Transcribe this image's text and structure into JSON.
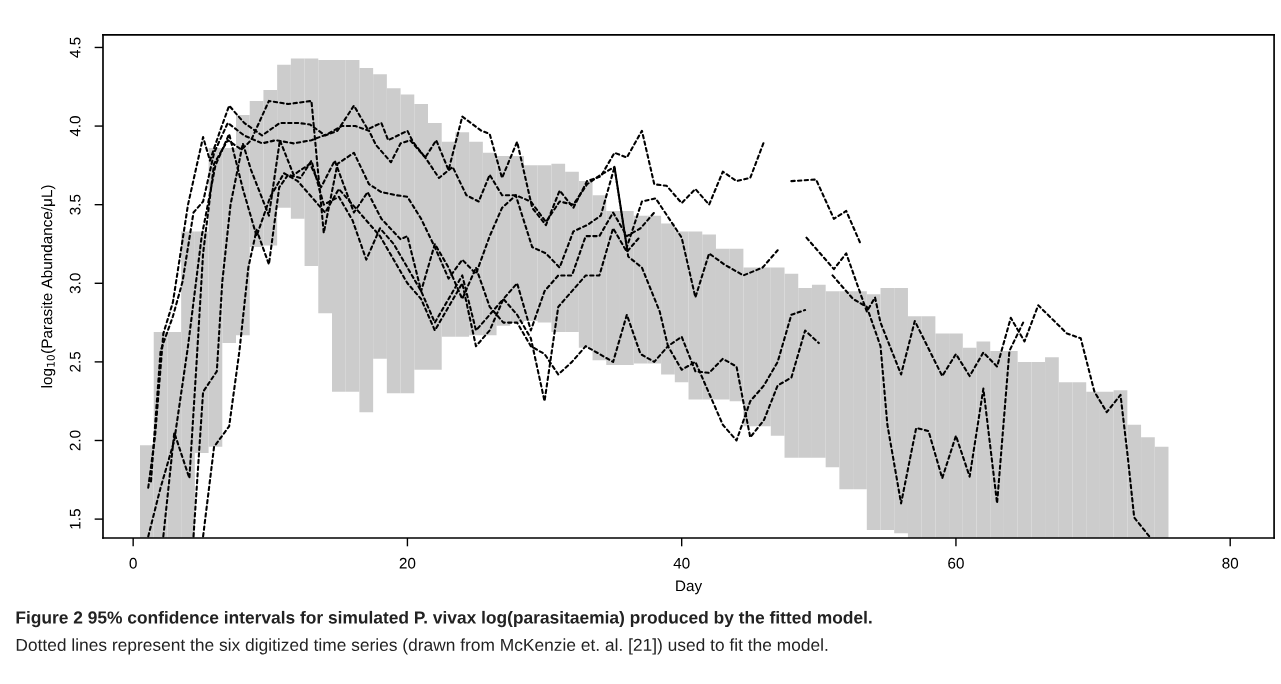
{
  "chart_data": {
    "type": "line",
    "xlabel": "Day",
    "ylabel": "log$_{10}$(Parasite Abundance/μL)",
    "xlim": [
      -2.2,
      83.2
    ],
    "ylim": [
      1.38,
      4.58
    ],
    "xticks": [
      0,
      20,
      40,
      60,
      80
    ],
    "yticks": [
      1.5,
      {
        "value": 2,
        "label": "2.0"
      },
      2.5,
      {
        "value": 3,
        "label": "3.0"
      },
      3.5,
      {
        "value": 4,
        "label": "4.0"
      },
      4.5
    ],
    "line_style": "dotted",
    "series": [
      {
        "type": "bar",
        "color": "#cccccc",
        "x": [
          1,
          2,
          3,
          4,
          5,
          6,
          7,
          8,
          9,
          10,
          11,
          12,
          13,
          14,
          15,
          16,
          17,
          18,
          19,
          20,
          21,
          22,
          23,
          24,
          25,
          26,
          27,
          28,
          29,
          30,
          31,
          32,
          33,
          34,
          35,
          36,
          37,
          38,
          39,
          40,
          41,
          42,
          43,
          44,
          45,
          46,
          47,
          48,
          49,
          50,
          51,
          52,
          53,
          54,
          55,
          56,
          57,
          58,
          59,
          60,
          61,
          62,
          63,
          64,
          65,
          66,
          67,
          68,
          69,
          70,
          71,
          72,
          73,
          74,
          75
        ],
        "base": [
          1.38,
          1.38,
          1.38,
          1.38,
          1.92,
          1.96,
          2.62,
          2.67,
          3.23,
          3.24,
          3.48,
          3.41,
          3.11,
          2.81,
          2.31,
          2.31,
          2.18,
          2.52,
          2.3,
          2.3,
          2.45,
          2.45,
          2.66,
          2.66,
          2.67,
          2.67,
          2.73,
          2.75,
          2.76,
          2.75,
          2.69,
          2.69,
          2.59,
          2.51,
          2.48,
          2.48,
          2.49,
          2.49,
          2.42,
          2.37,
          2.26,
          2.26,
          2.26,
          2.25,
          2.09,
          2.09,
          2.03,
          1.89,
          1.89,
          1.89,
          1.83,
          1.69,
          1.69,
          1.43,
          1.43,
          1.41,
          1.38,
          1.38,
          1.38,
          1.38,
          1.38,
          1.38,
          1.38,
          1.38,
          1.38,
          1.38,
          1.38,
          1.38,
          1.38,
          1.38,
          1.38,
          1.38,
          1.38,
          1.38,
          1.38
        ],
        "values": [
          0.59,
          1.31,
          1.31,
          1.95,
          1.41,
          1.9,
          1.24,
          1.4,
          0.93,
          0.99,
          0.91,
          1.02,
          1.32,
          1.61,
          2.11,
          2.11,
          2.19,
          1.81,
          1.94,
          1.9,
          1.69,
          1.57,
          1.24,
          1.3,
          1.23,
          1.16,
          1.08,
          1.06,
          0.99,
          1.0,
          1.07,
          1.02,
          1.06,
          1.05,
          0.98,
          0.98,
          0.94,
          0.94,
          0.96,
          0.96,
          1.07,
          1.05,
          0.96,
          0.97,
          1.01,
          1.01,
          1.07,
          1.17,
          1.08,
          1.1,
          1.12,
          1.26,
          1.26,
          1.5,
          1.54,
          1.56,
          1.41,
          1.41,
          1.3,
          1.3,
          1.21,
          1.25,
          1.19,
          1.19,
          1.12,
          1.12,
          1.15,
          0.99,
          0.99,
          0.93,
          0.93,
          0.94,
          0.72,
          0.64,
          0.58
        ]
      },
      {
        "color": "#000000",
        "x": [
          1.1,
          1.6,
          2.2,
          2.9,
          4,
          5.1,
          5.6,
          6.3,
          7,
          8.1,
          9.4,
          10.7,
          12,
          12.9,
          14,
          14.9,
          16.1,
          17.1,
          18.1,
          18.6,
          20,
          20.4,
          21.3,
          22.1,
          23,
          24,
          25.4,
          26,
          26.9,
          28,
          29.1,
          30.1,
          31.1,
          32.1,
          33.1,
          34.1,
          35.1,
          36,
          37.1,
          38,
          38.9,
          40,
          41,
          42,
          43,
          44,
          45,
          46,
          47,
          48,
          49.8,
          51.1,
          52,
          53
        ],
        "values": [
          1.7,
          2.03,
          2.68,
          2.88,
          3.5,
          3.93,
          3.78,
          3.96,
          4.13,
          4.02,
          3.94,
          4.02,
          4.02,
          4.01,
          3.94,
          3.97,
          4.13,
          3.98,
          4.02,
          3.91,
          3.97,
          3.9,
          3.8,
          3.91,
          3.72,
          4.06,
          3.97,
          3.95,
          3.67,
          3.9,
          3.48,
          3.37,
          3.59,
          3.48,
          3.65,
          3.68,
          3.83,
          3.8,
          3.97,
          3.63,
          3.62,
          3.51,
          3.6,
          3.5,
          3.71,
          3.65,
          3.67,
          3.9,
          null,
          3.65,
          3.66,
          3.41,
          3.46,
          3.26
        ]
      },
      {
        "color": "#000000",
        "x": [
          1.3,
          2,
          2.9,
          3.6,
          4.4,
          5.1,
          5.9,
          6.9,
          8.1,
          9.4,
          10.4,
          11.7,
          13,
          14.2,
          15.2,
          16.2,
          17.2,
          17.7,
          18.8,
          19.5,
          20.2,
          21.3,
          22.3,
          23.3,
          24.3,
          25.2,
          26,
          26.9,
          27.9,
          29,
          30.1,
          31.1,
          32.1,
          33.1,
          34.1,
          35.1,
          36,
          37.1,
          38.1,
          39.4,
          40,
          41,
          42,
          43.1,
          44.5,
          45.9,
          47,
          48,
          49.1,
          51.1,
          52,
          53.5,
          54.1,
          54.5,
          56,
          57,
          59,
          60,
          61,
          62,
          63,
          64,
          65,
          66,
          68.1,
          69.1,
          70.1,
          71,
          72,
          72.5,
          73,
          74.1
        ],
        "values": [
          1.74,
          2.57,
          2.79,
          3.01,
          3.45,
          3.52,
          3.83,
          4.02,
          3.94,
          3.89,
          3.91,
          3.89,
          3.91,
          3.95,
          4.0,
          4.0,
          3.97,
          3.88,
          3.77,
          3.89,
          3.91,
          3.8,
          3.67,
          3.74,
          3.56,
          3.52,
          3.69,
          3.56,
          3.56,
          3.52,
          3.39,
          3.52,
          3.5,
          3.63,
          3.69,
          3.74,
          3.23,
          3.52,
          3.54,
          3.37,
          3.29,
          2.91,
          3.19,
          3.12,
          3.05,
          3.1,
          3.21,
          null,
          3.29,
          3.09,
          3.19,
          2.82,
          2.91,
          2.75,
          2.42,
          2.76,
          2.41,
          2.55,
          2.41,
          2.56,
          2.47,
          2.78,
          2.63,
          2.86,
          2.68,
          2.65,
          2.31,
          2.18,
          2.29,
          1.92,
          1.51,
          1.39
        ]
      },
      {
        "color": "#000000",
        "x": [
          2.2,
          3,
          4.1,
          4.6,
          5.1,
          5.9,
          6.9,
          7.9,
          8.6,
          9.9,
          11.3,
          13,
          13.9,
          14.9,
          16.1,
          17.2,
          18.1,
          19.2,
          20,
          21,
          22,
          23,
          24,
          25,
          26,
          26.9,
          27.9,
          29.1,
          30.1,
          31.1,
          32.1,
          33.1,
          34.1,
          35.1,
          36.1,
          37.1,
          38.4,
          39,
          40,
          41,
          42,
          43,
          44,
          45,
          46,
          47,
          48,
          49,
          50
        ],
        "values": [
          1.39,
          2.05,
          1.76,
          2.46,
          3.19,
          3.76,
          3.91,
          3.85,
          3.91,
          4.16,
          4.14,
          4.16,
          3.32,
          3.76,
          3.83,
          3.63,
          3.58,
          3.56,
          3.55,
          3.41,
          3.23,
          3.03,
          3.15,
          3.06,
          3.3,
          3.48,
          3.56,
          3.23,
          3.19,
          3.1,
          3.33,
          3.37,
          3.43,
          3.74,
          3.17,
          3.1,
          2.82,
          2.6,
          2.66,
          2.44,
          2.43,
          2.52,
          2.47,
          2.02,
          2.13,
          2.35,
          2.4,
          2.7,
          2.62
        ]
      },
      {
        "color": "#000000",
        "x": [
          4.4,
          5.1,
          6.1,
          6.5,
          7.1,
          8,
          8.6,
          9.9,
          10.7,
          11.7,
          12.9,
          13.7,
          14.7,
          16.1,
          17.1,
          18.1,
          19.5,
          20,
          21,
          22,
          23,
          24,
          25,
          26,
          27,
          28,
          29,
          30,
          31,
          32,
          33,
          34,
          35,
          36,
          37,
          38,
          39,
          40,
          41,
          42,
          43,
          44,
          45,
          46,
          47,
          48,
          49
        ],
        "values": [
          1.39,
          2.31,
          2.44,
          3.01,
          3.5,
          3.89,
          3.72,
          3.43,
          3.91,
          3.69,
          3.76,
          3.61,
          3.78,
          3.45,
          3.58,
          3.41,
          3.28,
          3.3,
          2.95,
          3.25,
          3.1,
          2.9,
          3.1,
          2.85,
          2.75,
          2.75,
          2.6,
          2.55,
          2.42,
          2.5,
          2.6,
          2.55,
          2.5,
          2.8,
          2.55,
          2.5,
          2.6,
          2.45,
          2.5,
          2.3,
          2.1,
          2.0,
          2.25,
          2.35,
          2.5,
          2.8,
          2.83
        ]
      },
      {
        "color": "#000000",
        "x": [
          5.1,
          5.9,
          7,
          7.75,
          8.4,
          9,
          9.9,
          10.65,
          11.3,
          12.2,
          13,
          13.9,
          15,
          16,
          17,
          18,
          19,
          20,
          21,
          22,
          23,
          24,
          25,
          26,
          27,
          28,
          29,
          30,
          31,
          32,
          33,
          34,
          35,
          36,
          37
        ],
        "values": [
          1.39,
          1.96,
          2.09,
          2.57,
          3.1,
          3.34,
          3.12,
          3.61,
          3.69,
          3.67,
          3.78,
          3.5,
          3.55,
          3.4,
          3.15,
          3.35,
          3.25,
          3.1,
          2.95,
          2.75,
          2.9,
          3.05,
          2.7,
          2.8,
          2.9,
          2.8,
          2.65,
          2.25,
          2.85,
          2.95,
          3.05,
          3.05,
          3.35,
          3.2,
          3.3
        ]
      },
      {
        "color": "#000000",
        "x": [
          1.1,
          2,
          3,
          4,
          5,
          6,
          7,
          8,
          9,
          10,
          11,
          12,
          13,
          14,
          15,
          16,
          17,
          18,
          19,
          20,
          21,
          22,
          23,
          24,
          25,
          26,
          27,
          28,
          29,
          30,
          31,
          32,
          33,
          34,
          35,
          36,
          37,
          38,
          45,
          51,
          52.5,
          53.5,
          54.5,
          55,
          56,
          57.1,
          58,
          59,
          60,
          61,
          62,
          63,
          63.9,
          64.9
        ],
        "values": [
          1.39,
          1.7,
          2.0,
          2.6,
          3.3,
          3.75,
          3.95,
          3.6,
          3.3,
          3.55,
          3.7,
          3.65,
          3.55,
          3.45,
          3.6,
          3.5,
          3.4,
          3.3,
          3.15,
          3.0,
          2.9,
          2.7,
          2.85,
          3.0,
          2.6,
          2.7,
          2.9,
          3.0,
          2.7,
          2.95,
          3.05,
          3.05,
          3.3,
          3.3,
          3.45,
          3.3,
          3.35,
          3.45,
          null,
          3.05,
          2.9,
          2.85,
          2.6,
          2.1,
          1.6,
          2.08,
          2.06,
          1.76,
          2.03,
          1.77,
          2.33,
          1.6,
          2.57,
          2.75
        ]
      }
    ],
    "annotations": [
      "Figure 2 95% confidence intervals for simulated P. vivax log(parasitaemia) produced by the fitted model.",
      "Dotted lines represent the six digitized time series (drawn from McKenzie et. al. [21]) used to fit the model."
    ]
  }
}
